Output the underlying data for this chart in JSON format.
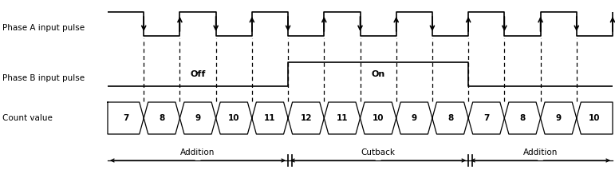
{
  "fig_width": 7.71,
  "fig_height": 2.23,
  "dpi": 100,
  "phase_a_label": "Phase A input pulse",
  "phase_b_label": "Phase B input pulse",
  "count_label": "Count value",
  "off_label": "Off",
  "on_label": "On",
  "addition_label": "Addition",
  "cutback_label": "Cutback",
  "count_values": [
    "7",
    "8",
    "9",
    "10",
    "11",
    "12",
    "11",
    "10",
    "9",
    "8",
    "7",
    "8",
    "9",
    "10"
  ],
  "text_color": "#000000",
  "line_color": "#000000",
  "bg_color": "#ffffff"
}
